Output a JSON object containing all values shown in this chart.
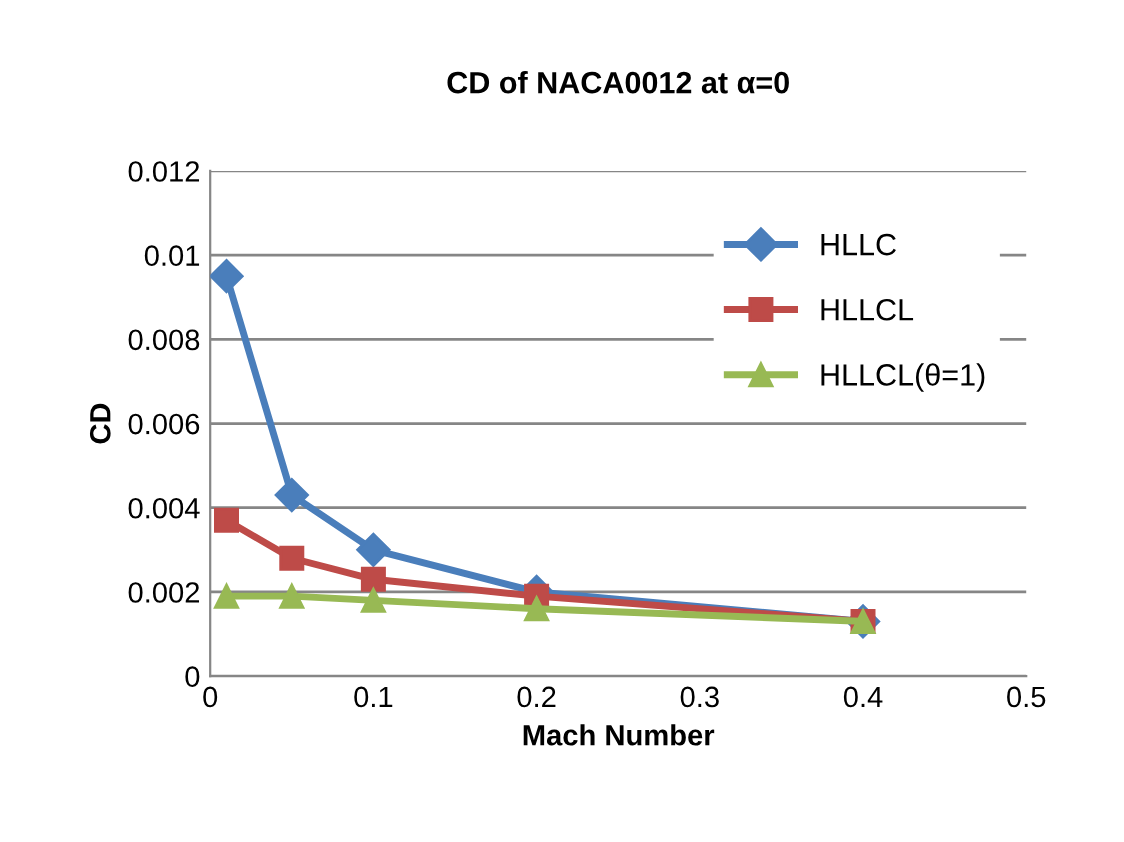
{
  "chart_data": {
    "type": "line",
    "title": "CD of NACA0012 at α=0",
    "xlabel": "Mach Number",
    "ylabel": "CD",
    "x": [
      0.01,
      0.05,
      0.1,
      0.2,
      0.4
    ],
    "series": [
      {
        "name": "HLLC",
        "color": "#4a7ebb",
        "marker": "diamond",
        "values": [
          0.0095,
          0.0043,
          0.003,
          0.002,
          0.0013
        ]
      },
      {
        "name": "HLLCL",
        "color": "#be4b48",
        "marker": "square",
        "values": [
          0.0037,
          0.0028,
          0.0023,
          0.0019,
          0.0013
        ]
      },
      {
        "name": "HLLCL(θ=1)",
        "color": "#98b954",
        "marker": "triangle",
        "values": [
          0.0019,
          0.0019,
          0.0018,
          0.0016,
          0.0013
        ]
      }
    ],
    "xlim": [
      0,
      0.5
    ],
    "xticks": [
      0,
      0.1,
      0.2,
      0.3,
      0.4,
      0.5
    ],
    "ylim": [
      0,
      0.012
    ],
    "yticks": [
      0,
      0.002,
      0.004,
      0.006,
      0.008,
      0.01,
      0.012
    ],
    "grid": "y",
    "legend": "right"
  }
}
